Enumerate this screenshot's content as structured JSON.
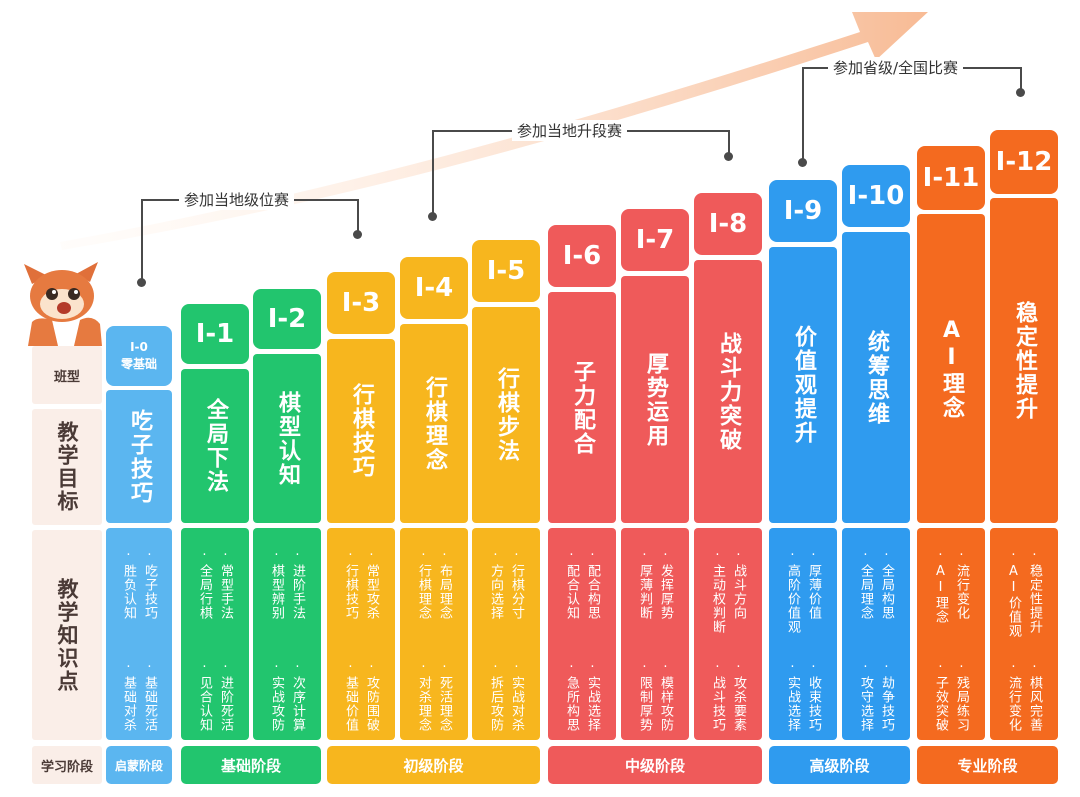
{
  "row_labels": {
    "class_type": "班型",
    "goal": "教学目标",
    "knowledge": "教学知识点",
    "phase": "学习阶段"
  },
  "milestones": [
    {
      "label": "参加当地级位赛"
    },
    {
      "label": "参加当地升段赛"
    },
    {
      "label": "参加省级/全国比赛"
    }
  ],
  "stages": [
    {
      "label": "启蒙阶段",
      "color": "#5bb6f0"
    },
    {
      "label": "基础阶段",
      "color": "#22c56e"
    },
    {
      "label": "初级阶段",
      "color": "#f7b61e"
    },
    {
      "label": "中级阶段",
      "color": "#ef5a5a"
    },
    {
      "label": "高级阶段",
      "color": "#2f9bef"
    },
    {
      "label": "专业阶段",
      "color": "#f46a1f"
    }
  ],
  "columns": [
    {
      "id": "I-0",
      "title_line1": "I-0",
      "title_line2": "零基础",
      "goal": "吃子技巧",
      "color": "#5bb6f0",
      "kp_top": [
        "吃子技巧",
        "胜负认知"
      ],
      "kp_bottom": [
        "基础死活",
        "基础对杀"
      ]
    },
    {
      "id": "I-1",
      "title": "I-1",
      "goal": "全局下法",
      "color": "#22c56e",
      "kp_top": [
        "常型手法",
        "全局行棋"
      ],
      "kp_bottom": [
        "进阶死活",
        "见合认知"
      ]
    },
    {
      "id": "I-2",
      "title": "I-2",
      "goal": "棋型认知",
      "color": "#22c56e",
      "kp_top": [
        "进阶手法",
        "棋型辨别"
      ],
      "kp_bottom": [
        "次序计算",
        "实战攻防"
      ]
    },
    {
      "id": "I-3",
      "title": "I-3",
      "goal": "行棋技巧",
      "color": "#f7b61e",
      "kp_top": [
        "常型攻杀",
        "行棋技巧"
      ],
      "kp_bottom": [
        "攻防围破",
        "基础价值"
      ]
    },
    {
      "id": "I-4",
      "title": "I-4",
      "goal": "行棋理念",
      "color": "#f7b61e",
      "kp_top": [
        "布局理念",
        "行棋理念"
      ],
      "kp_bottom": [
        "死活理念",
        "对杀理念"
      ]
    },
    {
      "id": "I-5",
      "title": "I-5",
      "goal": "行棋步法",
      "color": "#f7b61e",
      "kp_top": [
        "行棋分寸",
        "方向选择"
      ],
      "kp_bottom": [
        "实战对杀",
        "拆后攻防"
      ]
    },
    {
      "id": "I-6",
      "title": "I-6",
      "goal": "子力配合",
      "color": "#ef5a5a",
      "kp_top": [
        "配合构思",
        "配合认知"
      ],
      "kp_bottom": [
        "实战选择",
        "急所构思"
      ]
    },
    {
      "id": "I-7",
      "title": "I-7",
      "goal": "厚势运用",
      "color": "#ef5a5a",
      "kp_top": [
        "发挥厚势",
        "厚薄判断"
      ],
      "kp_bottom": [
        "模样攻防",
        "限制厚势"
      ]
    },
    {
      "id": "I-8",
      "title": "I-8",
      "goal": "战斗力突破",
      "color": "#ef5a5a",
      "kp_top": [
        "战斗方向",
        "主动权判断"
      ],
      "kp_bottom": [
        "攻杀要素",
        "战斗技巧"
      ]
    },
    {
      "id": "I-9",
      "title": "I-9",
      "goal": "价值观提升",
      "color": "#2f9bef",
      "kp_top": [
        "厚薄价值",
        "高阶价值观"
      ],
      "kp_bottom": [
        "收束技巧",
        "实战选择"
      ]
    },
    {
      "id": "I-10",
      "title": "I-10",
      "goal": "统筹思维",
      "color": "#2f9bef",
      "kp_top": [
        "全局构思",
        "全局理念"
      ],
      "kp_bottom": [
        "劫争技巧",
        "攻守选择"
      ]
    },
    {
      "id": "I-11",
      "title": "I-11",
      "goal": "AI理念",
      "color": "#f46a1f",
      "kp_top": [
        "流行变化",
        "AI理念"
      ],
      "kp_bottom": [
        "残局练习",
        "子效突破"
      ]
    },
    {
      "id": "I-12",
      "title": "I-12",
      "goal": "稳定性提升",
      "color": "#f46a1f",
      "kp_top": [
        "稳定性提升",
        "AI价值观"
      ],
      "kp_bottom": [
        "棋风完善",
        "流行变化"
      ]
    }
  ]
}
